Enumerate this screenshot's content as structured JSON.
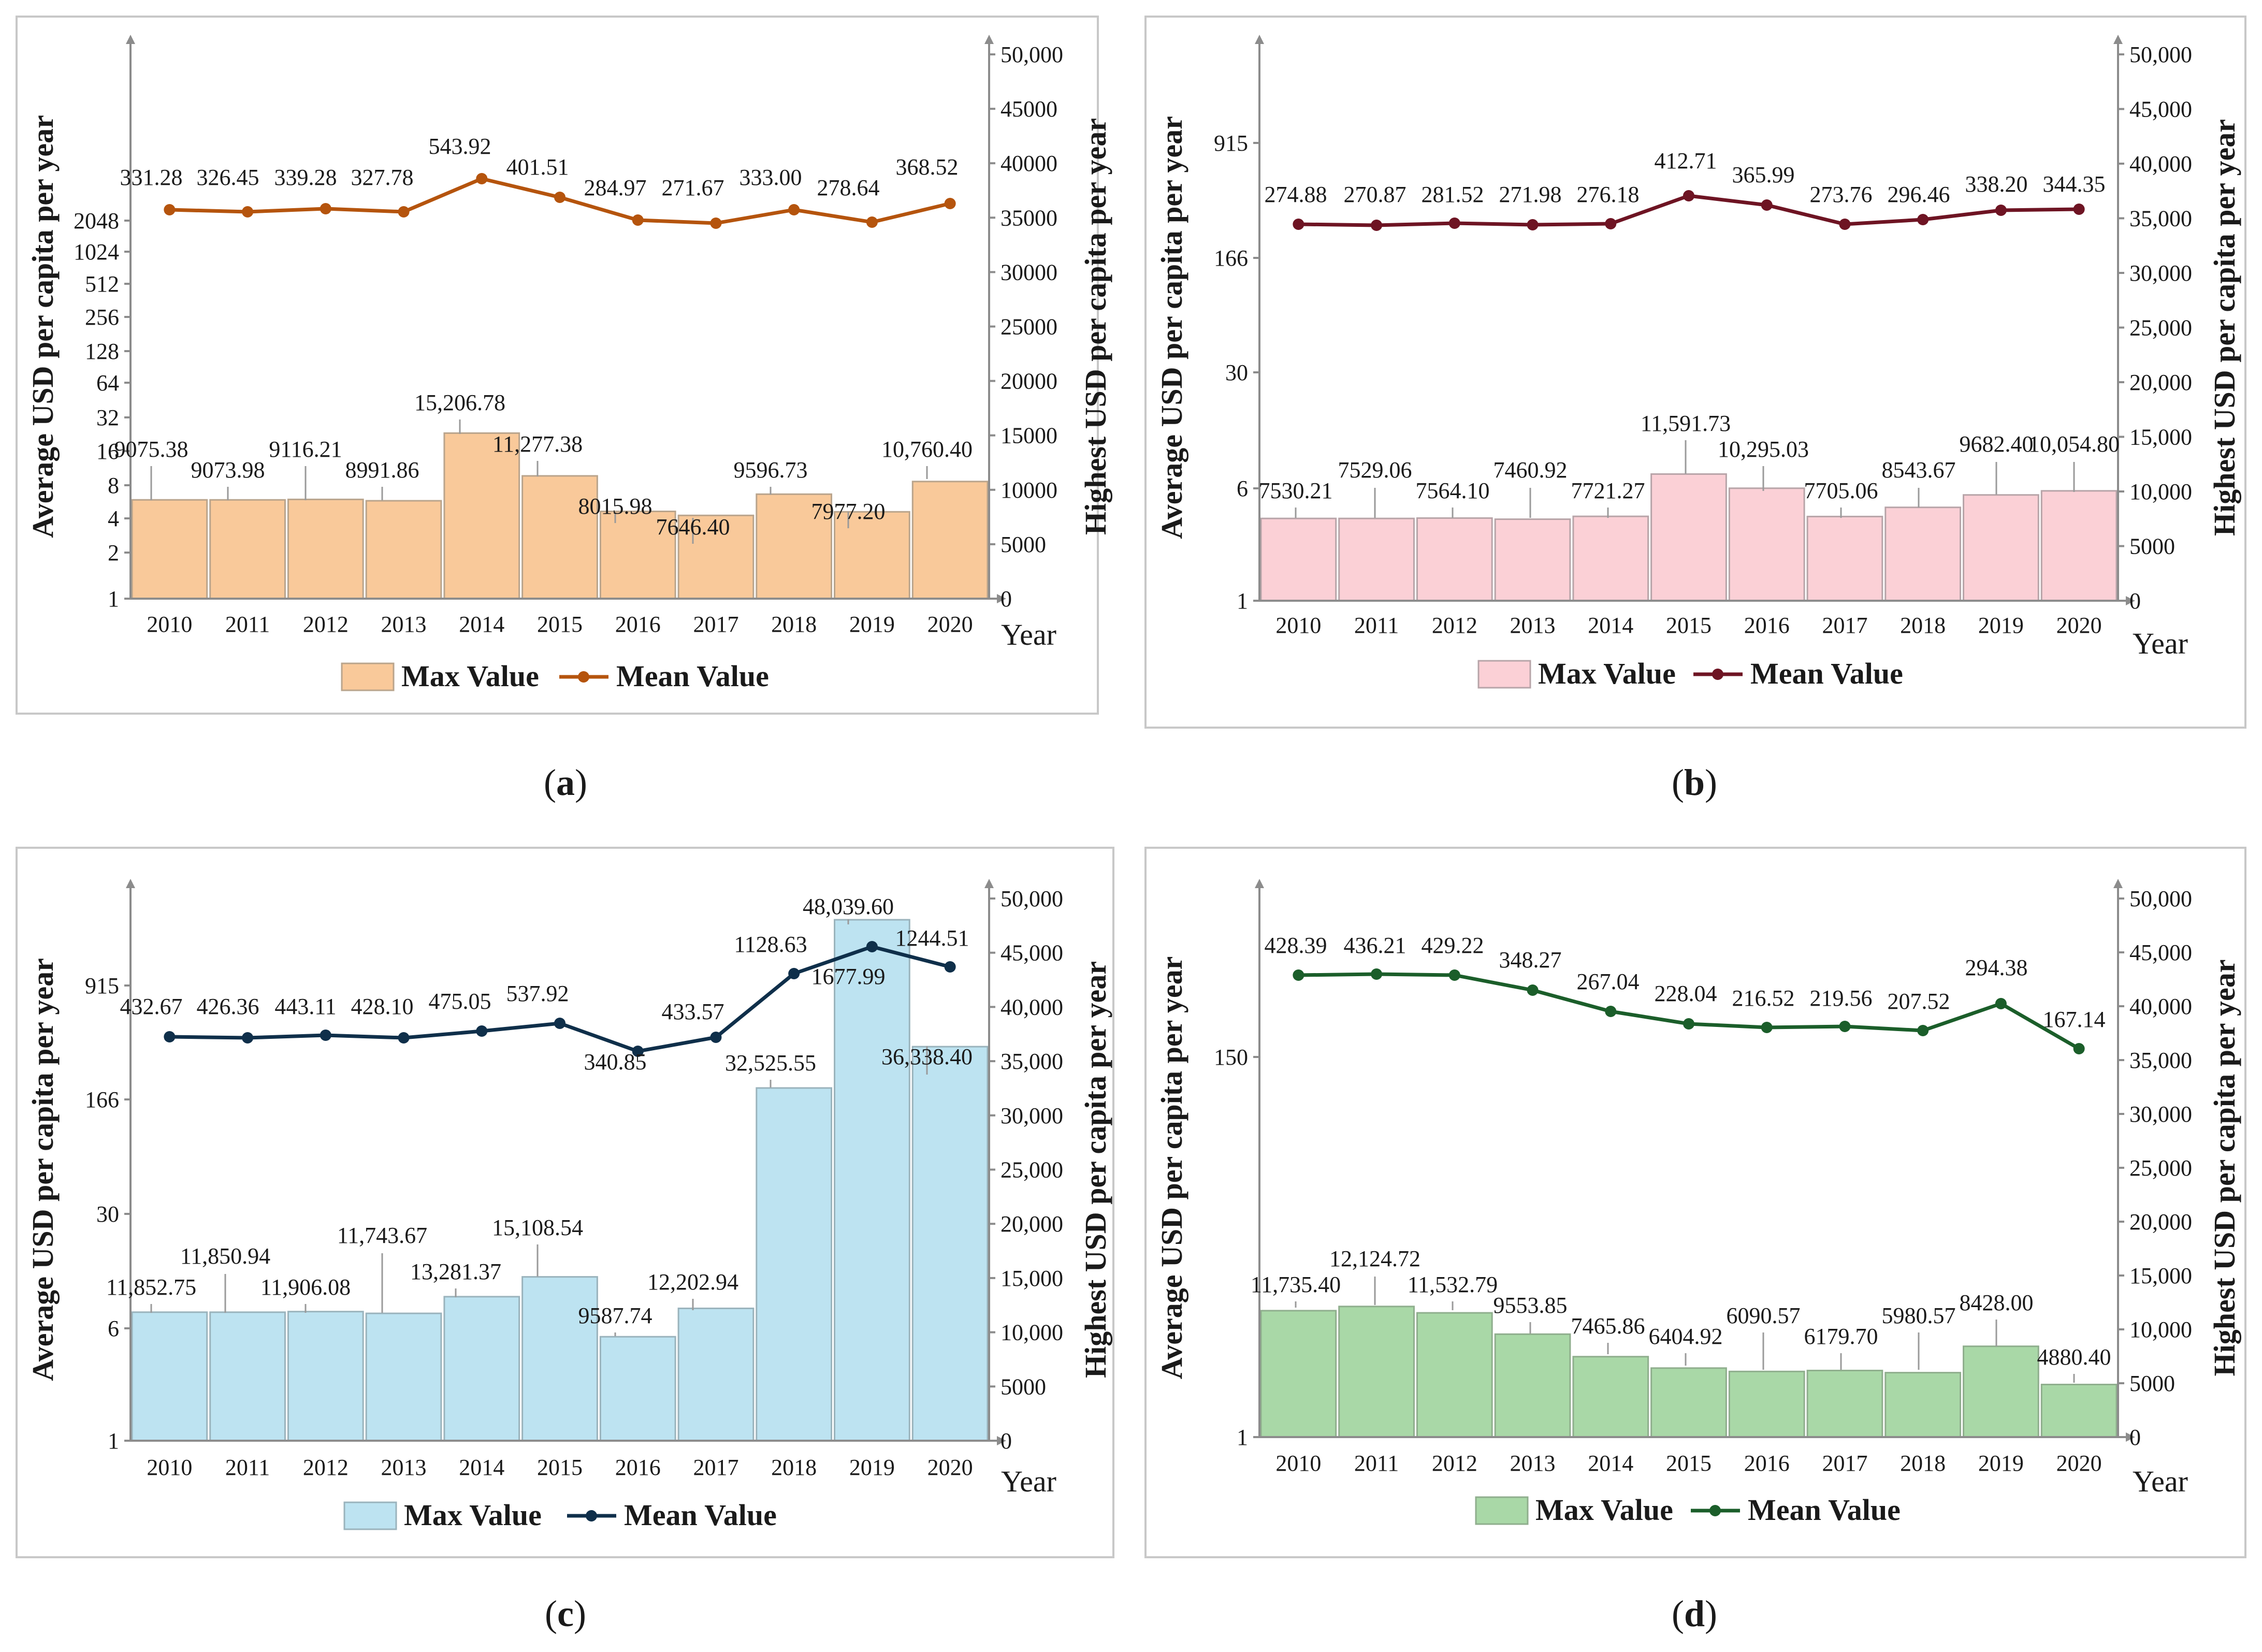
{
  "chart_data": [
    {
      "panel": "a",
      "caption_letter": "a",
      "type": "bar+line",
      "xlabel": "Year",
      "ylabel_left": "Average USD per capita per year",
      "ylabel_right": "Highest USD per capita per year",
      "left_scale": "log",
      "left_ticks": [
        "1",
        "2",
        "4",
        "8",
        "16",
        "32",
        "64",
        "128",
        "256",
        "512",
        "1024",
        "2048"
      ],
      "right_ylim": [
        0,
        50000
      ],
      "right_ticks": [
        "0",
        "5000",
        "10000",
        "15000",
        "20000",
        "25000",
        "30000",
        "35000",
        "40000",
        "45000",
        "50,000"
      ],
      "categories": [
        "2010",
        "2011",
        "2012",
        "2013",
        "2014",
        "2015",
        "2016",
        "2017",
        "2018",
        "2019",
        "2020"
      ],
      "series": [
        {
          "name": "Max Value",
          "axis": "right",
          "type": "bar",
          "values": [
            9075.38,
            9073.98,
            9116.21,
            8991.86,
            15206.78,
            11277.38,
            8015.98,
            7646.4,
            9596.73,
            7977.2,
            10760.4
          ],
          "labels": [
            "9075.38",
            "9073.98",
            "9116.21",
            "8991.86",
            "15,206.78",
            "11,277.38",
            "8015.98",
            "7646.40",
            "9596.73",
            "7977.20",
            "10,760.40"
          ]
        },
        {
          "name": "Mean Value",
          "axis": "left",
          "type": "line",
          "values": [
            331.28,
            326.45,
            339.28,
            327.78,
            543.92,
            401.51,
            284.97,
            271.67,
            333.0,
            278.64,
            368.52
          ],
          "labels": [
            "331.28",
            "326.45",
            "339.28",
            "327.78",
            "543.92",
            "401.51",
            "284.97",
            "271.67",
            "333.00",
            "278.64",
            "368.52"
          ]
        }
      ],
      "colors": {
        "bar_fill": "#f9c99a",
        "bar_stroke": "#b9a48c",
        "line": "#b5540d",
        "legend_box": "#f9c99a"
      }
    },
    {
      "panel": "b",
      "caption_letter": "b",
      "type": "bar+line",
      "xlabel": "Year",
      "ylabel_left": "Average USD per capita per year",
      "ylabel_right": "Highest USD per capita per year",
      "left_scale": "log",
      "left_ticks": [
        "1",
        "6",
        "30",
        "166",
        "915"
      ],
      "right_ylim": [
        0,
        50000
      ],
      "right_ticks": [
        "0",
        "5000",
        "10,000",
        "15,000",
        "20,000",
        "25,000",
        "30,000",
        "35,000",
        "40,000",
        "45,000",
        "50,000"
      ],
      "categories": [
        "2010",
        "2011",
        "2012",
        "2013",
        "2014",
        "2015",
        "2016",
        "2017",
        "2018",
        "2019",
        "2020"
      ],
      "series": [
        {
          "name": "Max Value",
          "axis": "right",
          "type": "bar",
          "values": [
            7530.21,
            7529.06,
            7564.1,
            7460.92,
            7721.27,
            11591.73,
            10295.03,
            7705.06,
            8543.67,
            9682.4,
            10054.8
          ],
          "labels": [
            "7530.21",
            "7529.06",
            "7564.10",
            "7460.92",
            "7721.27",
            "11,591.73",
            "10,295.03",
            "7705.06",
            "8543.67",
            "9682.40",
            "10,054.80"
          ]
        },
        {
          "name": "Mean Value",
          "axis": "left",
          "type": "line",
          "values": [
            274.88,
            270.87,
            281.52,
            271.98,
            276.18,
            412.71,
            365.99,
            273.76,
            296.46,
            338.2,
            344.35
          ],
          "labels": [
            "274.88",
            "270.87",
            "281.52",
            "271.98",
            "276.18",
            "412.71",
            "365.99",
            "273.76",
            "296.46",
            "338.20",
            "344.35"
          ]
        }
      ],
      "colors": {
        "bar_fill": "#fbd0d6",
        "bar_stroke": "#b7a4a8",
        "line": "#6e1423",
        "legend_box": "#fbd0d6"
      }
    },
    {
      "panel": "c",
      "caption_letter": "c",
      "type": "bar+line",
      "xlabel": "Year",
      "ylabel_left": "Average USD per capita per year",
      "ylabel_right": "Highest USD per capita per year",
      "left_scale": "log",
      "left_ticks": [
        "1",
        "6",
        "30",
        "166",
        "915"
      ],
      "right_ylim": [
        0,
        50000
      ],
      "right_ticks": [
        "0",
        "5000",
        "10,000",
        "15,000",
        "20,000",
        "25,000",
        "30,000",
        "35,000",
        "40,000",
        "45,000",
        "50,000"
      ],
      "categories": [
        "2010",
        "2011",
        "2012",
        "2013",
        "2014",
        "2015",
        "2016",
        "2017",
        "2018",
        "2019",
        "2020"
      ],
      "series": [
        {
          "name": "Max Value",
          "axis": "right",
          "type": "bar",
          "values": [
            11852.75,
            11850.94,
            11906.08,
            11743.67,
            13281.37,
            15108.54,
            9587.74,
            12202.94,
            32525.55,
            48039.6,
            36338.4
          ],
          "labels": [
            "11,852.75",
            "11,850.94",
            "11,906.08",
            "11,743.67",
            "13,281.37",
            "15,108.54",
            "9587.74",
            "12,202.94",
            "32,525.55",
            "48,039.60",
            "36,338.40"
          ]
        },
        {
          "name": "Mean Value",
          "axis": "left",
          "type": "line",
          "values": [
            432.67,
            426.36,
            443.11,
            428.1,
            475.05,
            537.92,
            340.85,
            433.57,
            1128.63,
            1677.99,
            1244.51
          ],
          "labels": [
            "432.67",
            "426.36",
            "443.11",
            "428.10",
            "475.05",
            "537.92",
            "340.85",
            "433.57",
            "1128.63",
            "1677.99",
            "1244.51"
          ]
        }
      ],
      "colors": {
        "bar_fill": "#bde3f1",
        "bar_stroke": "#9ab3bc",
        "line": "#0f2f4a",
        "legend_box": "#bde3f1"
      }
    },
    {
      "panel": "d",
      "caption_letter": "d",
      "type": "bar+line",
      "xlabel": "Year",
      "ylabel_left": "Average USD per capita per year",
      "ylabel_right": "Highest USD per capita per year",
      "left_scale": "log",
      "left_ticks": [
        "1",
        "150"
      ],
      "right_ylim": [
        0,
        50000
      ],
      "right_ticks": [
        "0",
        "5000",
        "10,000",
        "15,000",
        "20,000",
        "25,000",
        "30,000",
        "35,000",
        "40,000",
        "45,000",
        "50,000"
      ],
      "categories": [
        "2010",
        "2011",
        "2012",
        "2013",
        "2014",
        "2015",
        "2016",
        "2017",
        "2018",
        "2019",
        "2020"
      ],
      "series": [
        {
          "name": "Max Value",
          "axis": "right",
          "type": "bar",
          "values": [
            11735.4,
            12124.72,
            11532.79,
            9553.85,
            7465.86,
            6404.92,
            6090.57,
            6179.7,
            5980.57,
            8428.0,
            4880.4
          ],
          "labels": [
            "11,735.40",
            "12,124.72",
            "11,532.79",
            "9553.85",
            "7465.86",
            "6404.92",
            "6090.57",
            "6179.70",
            "5980.57",
            "8428.00",
            "4880.40"
          ]
        },
        {
          "name": "Mean Value",
          "axis": "left",
          "type": "line",
          "values": [
            428.39,
            436.21,
            429.22,
            348.27,
            267.04,
            228.04,
            216.52,
            219.56,
            207.52,
            294.38,
            167.14
          ],
          "labels": [
            "428.39",
            "436.21",
            "429.22",
            "348.27",
            "267.04",
            "228.04",
            "216.52",
            "219.56",
            "207.52",
            "294.38",
            "167.14"
          ]
        }
      ],
      "colors": {
        "bar_fill": "#a9d8a7",
        "bar_stroke": "#8fae8d",
        "line": "#1b5e2a",
        "legend_box": "#a9d8a7"
      }
    }
  ]
}
